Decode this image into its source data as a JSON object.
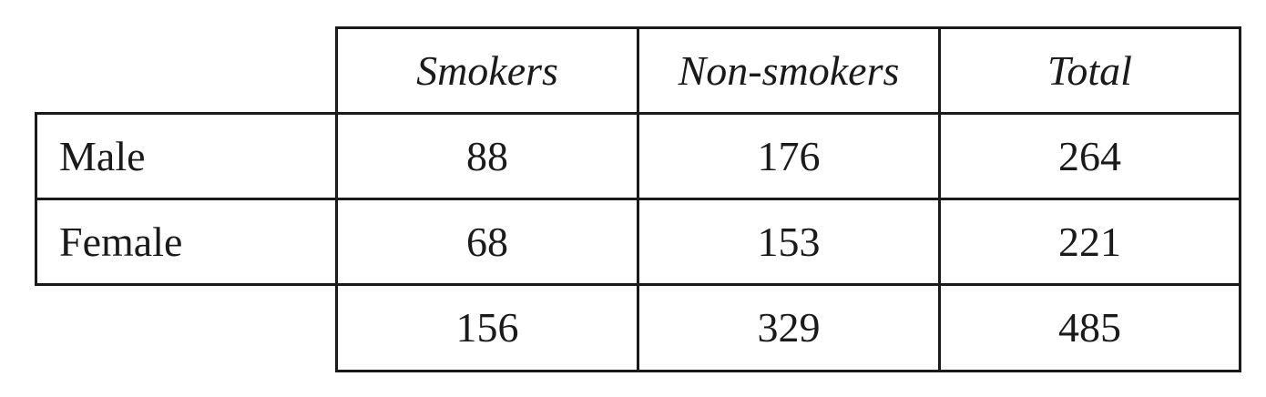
{
  "table": {
    "columns": [
      "Smokers",
      "Non-smokers",
      "Total"
    ],
    "rows": [
      {
        "label": "Male",
        "values": [
          "88",
          "176",
          "264"
        ]
      },
      {
        "label": "Female",
        "values": [
          "68",
          "153",
          "221"
        ]
      },
      {
        "label": "",
        "values": [
          "156",
          "329",
          "485"
        ]
      }
    ]
  }
}
